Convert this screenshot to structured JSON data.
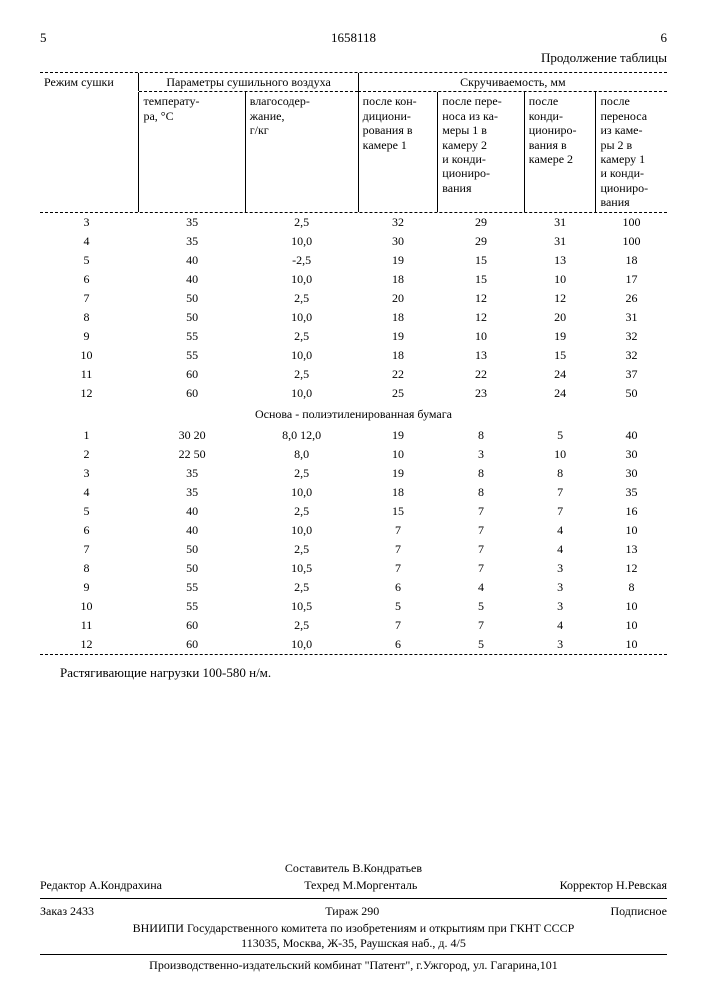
{
  "header": {
    "left_page_num": "5",
    "doc_number": "1658118",
    "right_page_num": "6",
    "continuation_label": "Продолжение таблицы"
  },
  "table": {
    "group1_label": "Режим сушки",
    "group2_label": "Параметры сушильного воздуха",
    "group3_label": "Скручиваемость, мм",
    "col_temp": "температу-\nра, °С",
    "col_moist": "влагосодер-\nжание,\nг/кг",
    "col_r1": "после кон-\nдициони-\nрования в\nкамере 1",
    "col_r2": "после пере-\nноса из ка-\nмеры 1 в\nкамеру 2\nи конди-\nциониро-\nвания",
    "col_r3": "после\nконди-\nциониро-\nвания в\nкамере 2",
    "col_r4": "после\nпереноса\nиз каме-\nры 2 в\nкамеру 1\nи конди-\nциониро-\nвания",
    "section1_rows": [
      [
        "3",
        "35",
        "2,5",
        "32",
        "29",
        "31",
        "100"
      ],
      [
        "4",
        "35",
        "10,0",
        "30",
        "29",
        "31",
        "100"
      ],
      [
        "5",
        "40",
        "-2,5",
        "19",
        "15",
        "13",
        "18"
      ],
      [
        "6",
        "40",
        "10,0",
        "18",
        "15",
        "10",
        "17"
      ],
      [
        "7",
        "50",
        "2,5",
        "20",
        "12",
        "12",
        "26"
      ],
      [
        "8",
        "50",
        "10,0",
        "18",
        "12",
        "20",
        "31"
      ],
      [
        "9",
        "55",
        "2,5",
        "19",
        "10",
        "19",
        "32"
      ],
      [
        "10",
        "55",
        "10,0",
        "18",
        "13",
        "15",
        "32"
      ],
      [
        "11",
        "60",
        "2,5",
        "22",
        "22",
        "24",
        "37"
      ],
      [
        "12",
        "60",
        "10,0",
        "25",
        "23",
        "24",
        "50"
      ]
    ],
    "section_divider": "Основа - полиэтиленированная бумага",
    "section2_rows": [
      [
        "1",
        "30 20",
        "8,0 12,0",
        "19",
        "8",
        "5",
        "40"
      ],
      [
        "2",
        "22 50",
        "8,0",
        "10",
        "3",
        "10",
        "30"
      ],
      [
        "3",
        "35",
        "2,5",
        "19",
        "8",
        "8",
        "30"
      ],
      [
        "4",
        "35",
        "10,0",
        "18",
        "8",
        "7",
        "35"
      ],
      [
        "5",
        "40",
        "2,5",
        "15",
        "7",
        "7",
        "16"
      ],
      [
        "6",
        "40",
        "10,0",
        "7",
        "7",
        "4",
        "10"
      ],
      [
        "7",
        "50",
        "2,5",
        "7",
        "7",
        "4",
        "13"
      ],
      [
        "8",
        "50",
        "10,5",
        "7",
        "7",
        "3",
        "12"
      ],
      [
        "9",
        "55",
        "2,5",
        "6",
        "4",
        "3",
        "8"
      ],
      [
        "10",
        "55",
        "10,5",
        "5",
        "5",
        "3",
        "10"
      ],
      [
        "11",
        "60",
        "2,5",
        "7",
        "7",
        "4",
        "10"
      ],
      [
        "12",
        "60",
        "10,0",
        "6",
        "5",
        "3",
        "10"
      ]
    ]
  },
  "note": "Растягивающие нагрузки 100-580 н/м.",
  "footer": {
    "compiler": "Составитель В.Кондратьев",
    "editor": "Редактор А.Кондрахина",
    "techred": "Техред М.Моргенталь",
    "corrector": "Корректор Н.Ревская",
    "order": "Заказ 2433",
    "tirazh": "Тираж 290",
    "podpisnoe": "Подписное",
    "org": "ВНИИПИ Государственного комитета по изобретениям и открытиям при ГКНТ СССР",
    "address": "113035, Москва, Ж-35, Раушская наб., д. 4/5",
    "printer": "Производственно-издательский комбинат \"Патент\", г.Ужгород, ул. Гагарина,101"
  }
}
